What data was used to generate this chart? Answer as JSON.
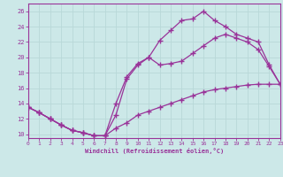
{
  "bg_color": "#cce8e8",
  "line_color": "#993399",
  "grid_color": "#aacccc",
  "xlim": [
    0,
    23
  ],
  "ylim": [
    9.5,
    27
  ],
  "xticks": [
    0,
    1,
    2,
    3,
    4,
    5,
    6,
    7,
    8,
    9,
    10,
    11,
    12,
    13,
    14,
    15,
    16,
    17,
    18,
    19,
    20,
    21,
    22,
    23
  ],
  "yticks": [
    10,
    12,
    14,
    16,
    18,
    20,
    22,
    24,
    26
  ],
  "xlabel": "Windchill (Refroidissement éolien,°C)",
  "line1_x": [
    0,
    1,
    2,
    3,
    4,
    5,
    6,
    7,
    8,
    9,
    10,
    11,
    12,
    13,
    14,
    15,
    16,
    17,
    18,
    19,
    20,
    21,
    22,
    23
  ],
  "line1_y": [
    13.5,
    12.8,
    12.0,
    11.2,
    10.5,
    10.2,
    9.8,
    9.8,
    14.0,
    17.5,
    19.2,
    20.0,
    19.0,
    19.2,
    19.5,
    20.5,
    21.5,
    22.5,
    23.0,
    22.5,
    22.0,
    21.0,
    18.8,
    16.5
  ],
  "line2_x": [
    0,
    1,
    2,
    3,
    4,
    5,
    6,
    7,
    8,
    9,
    10,
    11,
    12,
    13,
    14,
    15,
    16,
    17,
    18,
    19,
    20,
    21,
    22,
    23
  ],
  "line2_y": [
    13.5,
    12.8,
    12.0,
    11.2,
    10.5,
    10.2,
    9.8,
    9.8,
    12.5,
    17.2,
    19.0,
    20.0,
    22.2,
    23.5,
    24.8,
    25.0,
    26.0,
    24.8,
    24.0,
    23.0,
    22.5,
    22.0,
    19.0,
    16.5
  ],
  "line3_x": [
    0,
    1,
    2,
    3,
    4,
    5,
    6,
    7,
    8,
    9,
    10,
    11,
    12,
    13,
    14,
    15,
    16,
    17,
    18,
    19,
    20,
    21,
    22,
    23
  ],
  "line3_y": [
    13.5,
    12.8,
    12.0,
    11.2,
    10.5,
    10.2,
    9.8,
    9.8,
    10.8,
    11.5,
    12.5,
    13.0,
    13.5,
    14.0,
    14.5,
    15.0,
    15.5,
    15.8,
    16.0,
    16.2,
    16.4,
    16.5,
    16.5,
    16.5
  ]
}
